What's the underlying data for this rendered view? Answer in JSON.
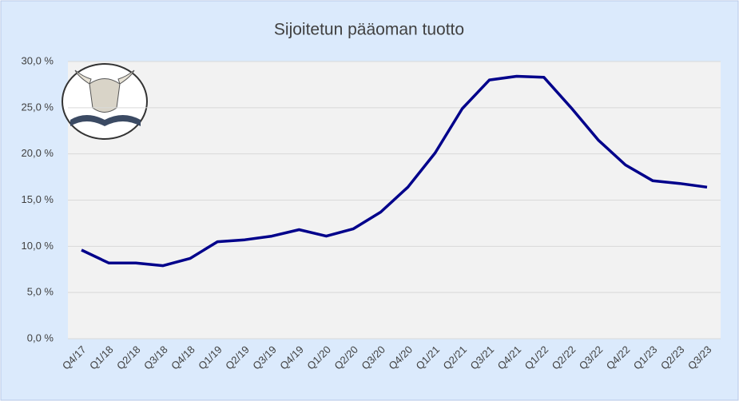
{
  "chart_data": {
    "type": "line",
    "title": "Sijoitetun pääoman tuotto",
    "categories": [
      "Q4/17",
      "Q1/18",
      "Q2/18",
      "Q3/18",
      "Q4/18",
      "Q1/19",
      "Q2/19",
      "Q3/19",
      "Q4/19",
      "Q1/20",
      "Q2/20",
      "Q3/20",
      "Q4/20",
      "Q1/21",
      "Q2/21",
      "Q3/21",
      "Q4/21",
      "Q1/22",
      "Q2/22",
      "Q3/22",
      "Q4/22",
      "Q1/23",
      "Q2/23",
      "Q3/23"
    ],
    "series": [
      {
        "color": "#00008b",
        "values": [
          9.6,
          8.2,
          8.2,
          7.9,
          8.7,
          10.5,
          10.7,
          11.1,
          11.8,
          11.1,
          11.9,
          13.7,
          16.4,
          20.1,
          24.9,
          28.0,
          28.4,
          28.3,
          25.0,
          21.5,
          18.8,
          17.1,
          16.8,
          16.4
        ]
      }
    ],
    "ylim": [
      0,
      30
    ],
    "yticks": [
      {
        "value": 0,
        "label": "0,0 %"
      },
      {
        "value": 5,
        "label": "5,0 %"
      },
      {
        "value": 10,
        "label": "10,0 %"
      },
      {
        "value": 15,
        "label": "15,0 %"
      },
      {
        "value": 20,
        "label": "20,0 %"
      },
      {
        "value": 25,
        "label": "25,0 %"
      },
      {
        "value": 30,
        "label": "30,0 %"
      }
    ],
    "grid": true
  }
}
